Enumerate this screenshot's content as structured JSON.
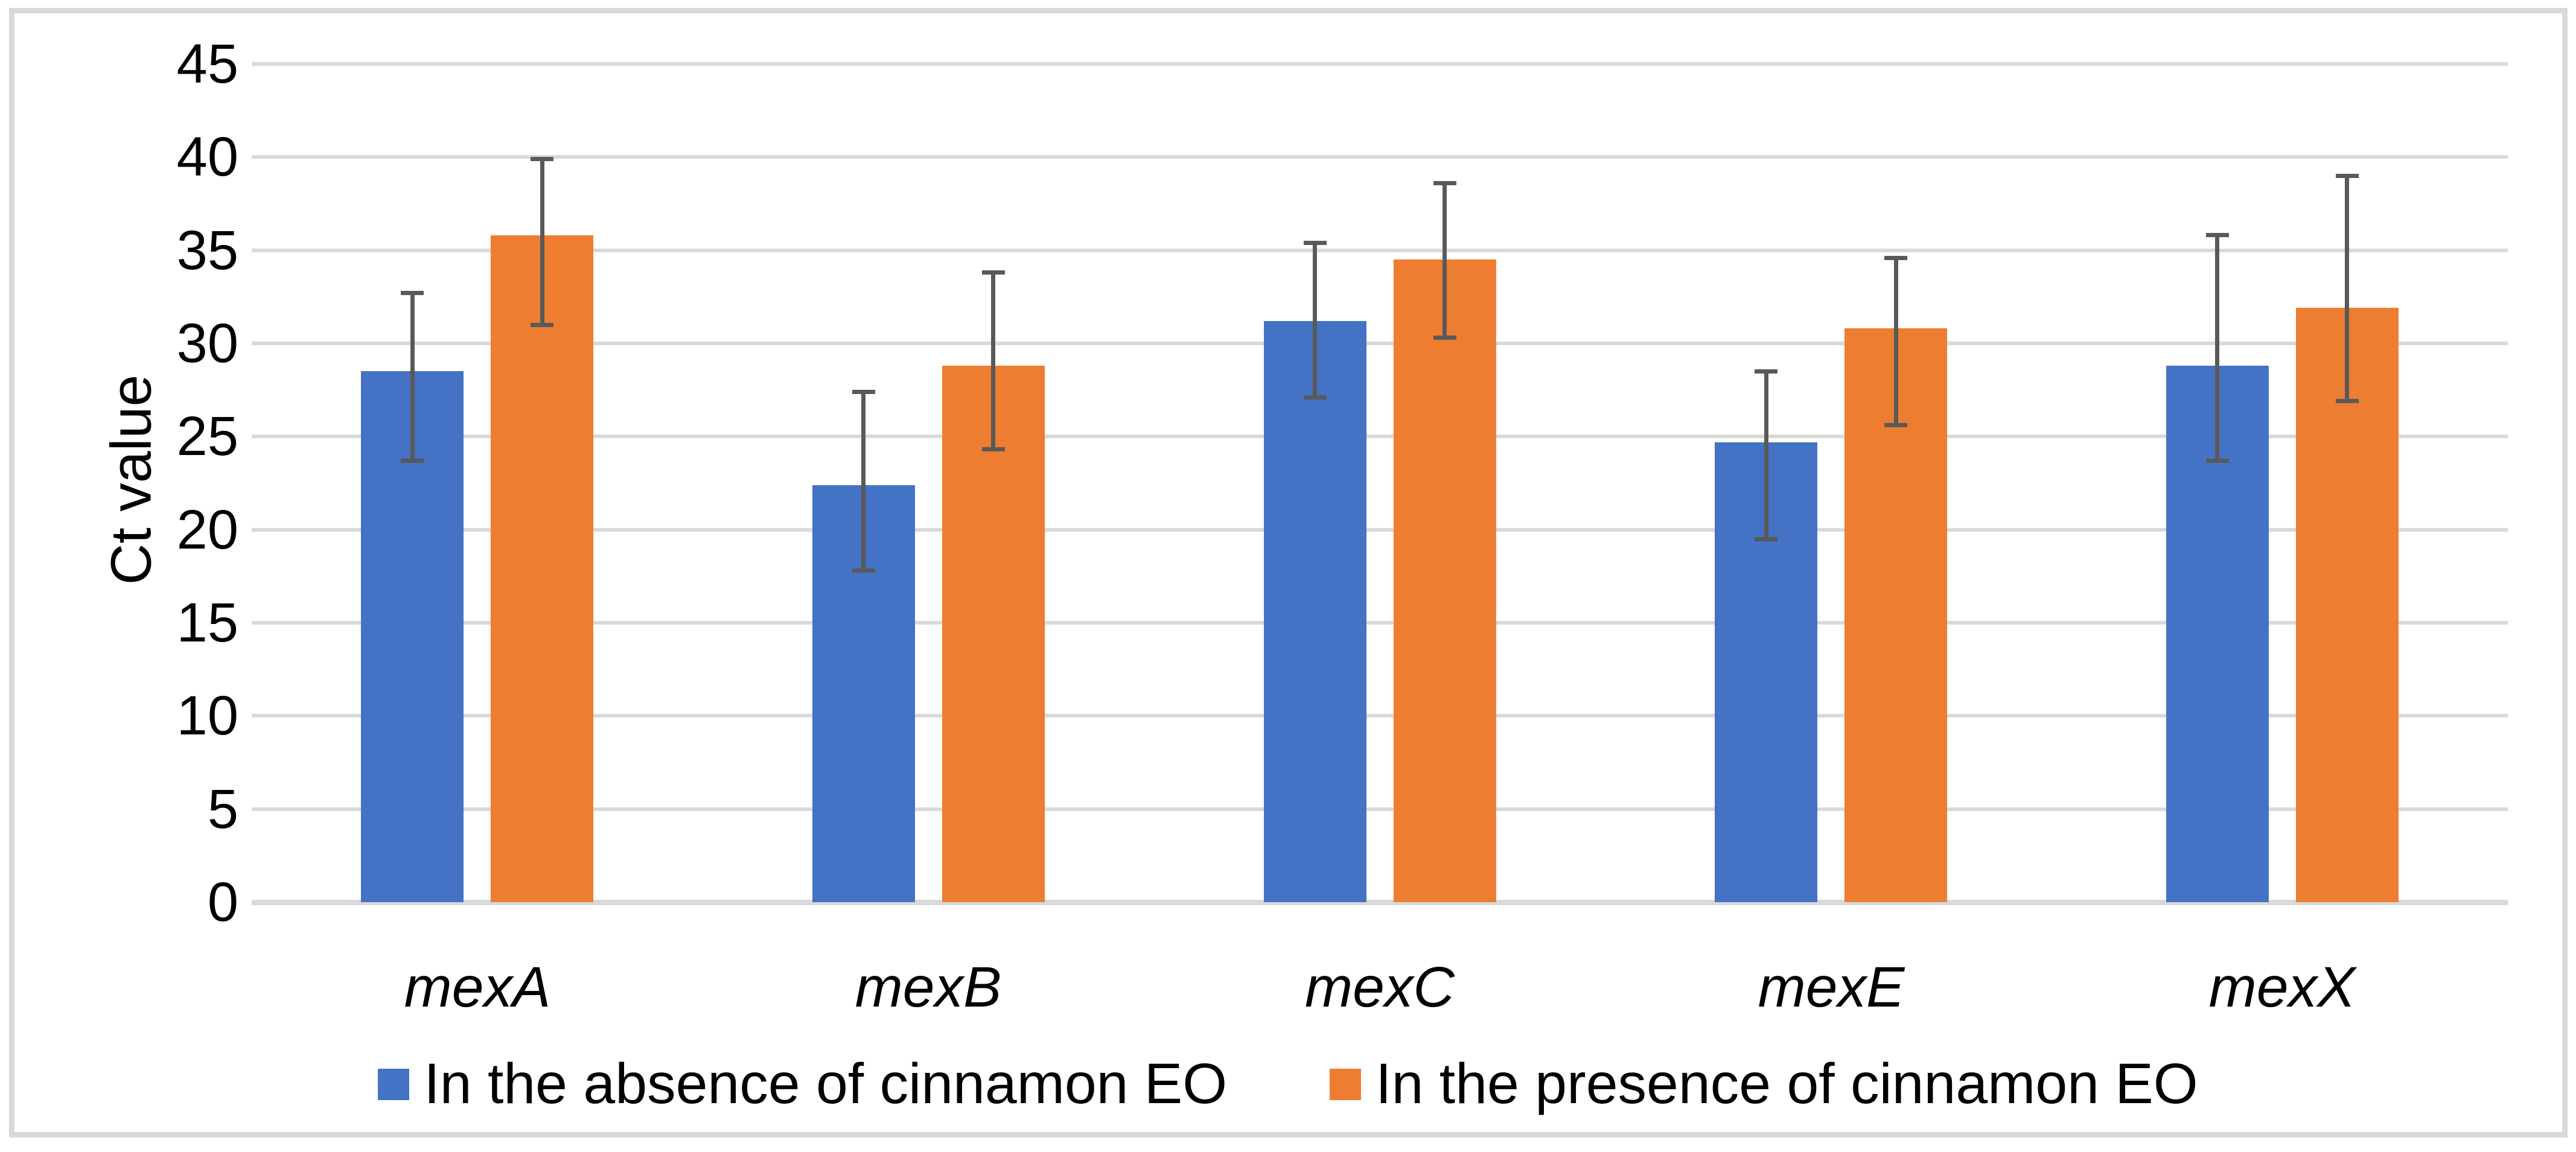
{
  "chart_data": {
    "type": "bar",
    "title": "",
    "xlabel": "",
    "ylabel": "Ct value",
    "ylim": [
      0,
      45
    ],
    "ytick_step": 5,
    "yticks": [
      0,
      5,
      10,
      15,
      20,
      25,
      30,
      35,
      40,
      45
    ],
    "grid": "horizontal",
    "legend_position": "bottom",
    "categories": [
      "mexA",
      "mexB",
      "mexC",
      "mexE",
      "mexX"
    ],
    "series": [
      {
        "name": "In the absence of cinnamon EO",
        "color": "#4472C4",
        "values": [
          28.5,
          22.4,
          31.2,
          24.7,
          28.8
        ],
        "error_upper": [
          32.7,
          27.4,
          35.4,
          28.5,
          35.8
        ],
        "error_lower": [
          23.7,
          17.8,
          27.1,
          19.5,
          23.7
        ]
      },
      {
        "name": "In the presence of cinnamon EO",
        "color": "#ED7D31",
        "values": [
          35.8,
          28.8,
          34.5,
          30.8,
          31.9
        ],
        "error_upper": [
          39.9,
          33.8,
          38.6,
          34.6,
          39.0
        ],
        "error_lower": [
          31.0,
          24.3,
          30.3,
          25.6,
          26.9
        ]
      }
    ],
    "colors": {
      "gridline": "#D9D9D9",
      "axis_line": "#D9D9D9",
      "figure_border": "#D9D9D9",
      "error_bar": "#595959",
      "text": "#000000",
      "background": "#FFFFFF"
    }
  }
}
